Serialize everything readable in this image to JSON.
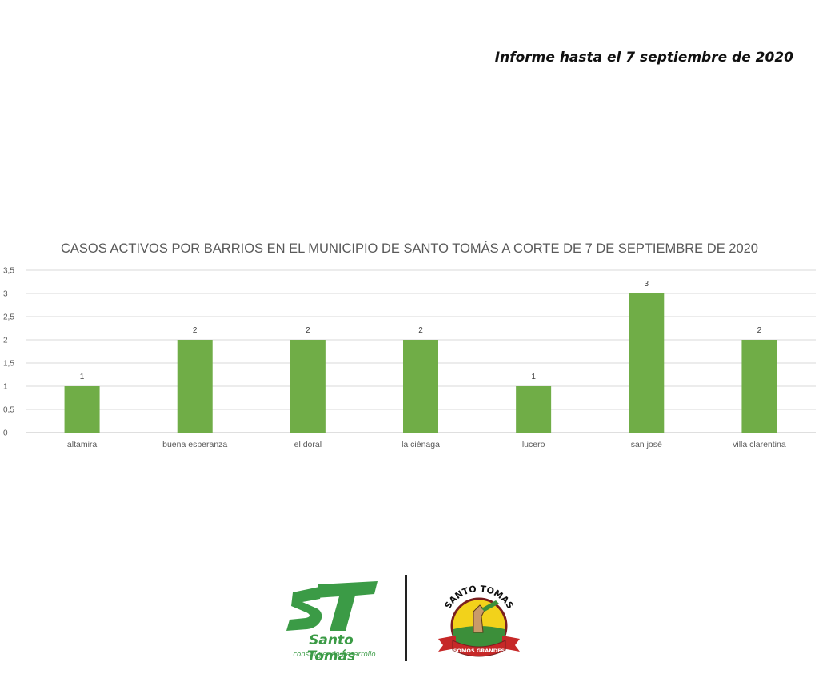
{
  "header": {
    "report_date": "Informe hasta el 7 septiembre de 2020"
  },
  "chart_data": {
    "type": "bar",
    "title": "CASOS ACTIVOS POR BARRIOS EN EL MUNICIPIO DE SANTO TOMÁS A CORTE DE 7 DE SEPTIEMBRE DE 2020",
    "categories": [
      "altamira",
      "buena esperanza",
      "el doral",
      "la ciénaga",
      "lucero",
      "san josé",
      "villa clarentina"
    ],
    "values": [
      1,
      2,
      2,
      2,
      1,
      3,
      2
    ],
    "data_labels": [
      "1",
      "2",
      "2",
      "2",
      "1",
      "3",
      "2"
    ],
    "ylim": [
      0,
      3.5
    ],
    "yticks": [
      "0",
      "0,5",
      "1",
      "1,5",
      "2",
      "2,5",
      "3",
      "3,5"
    ],
    "xlabel": "",
    "ylabel": "",
    "grid": true,
    "bar_color": "#70ad47"
  },
  "logos": {
    "municipal_logo": {
      "initials": "ST",
      "name": "Santo Tomás",
      "slogan": "construyendo desarrollo",
      "color": "#3b9b46"
    },
    "seal": {
      "top_text": "SANTO TOMAS",
      "band_text": "SOMOS GRANDES"
    }
  }
}
